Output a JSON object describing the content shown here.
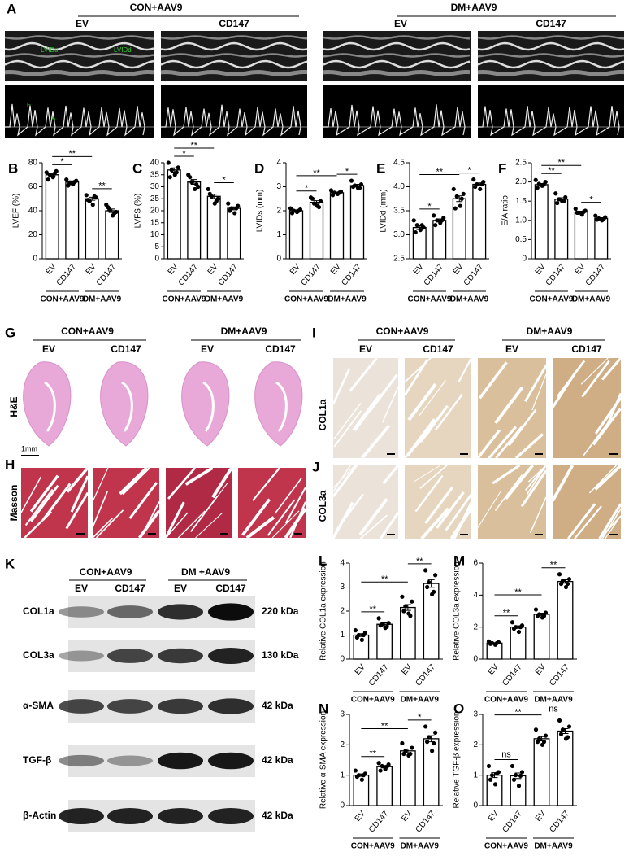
{
  "echo": {
    "panel": "A",
    "groups": [
      {
        "name": "CON+AAV9",
        "columns": [
          "EV",
          "CD147"
        ]
      },
      {
        "name": "DM+AAV9",
        "columns": [
          "EV",
          "CD147"
        ]
      }
    ],
    "annotations": [
      "LVIDs",
      "LVIDd",
      "E",
      "A"
    ]
  },
  "he_masson": {
    "panel_g": "G",
    "panel_h": "H",
    "groups": [
      {
        "name": "CON+AAV9",
        "columns": [
          "EV",
          "CD147"
        ]
      },
      {
        "name": "DM+AAV9",
        "columns": [
          "EV",
          "CD147"
        ]
      }
    ],
    "row_labels": [
      "H&E",
      "Masson"
    ],
    "scale_bar": "1mm"
  },
  "ihc": {
    "panel_i": "I",
    "panel_j": "J",
    "groups": [
      {
        "name": "CON+AAV9",
        "columns": [
          "EV",
          "CD147"
        ]
      },
      {
        "name": "DM+AAV9",
        "columns": [
          "EV",
          "CD147"
        ]
      }
    ],
    "row_labels": [
      "COL1a",
      "COL3a"
    ]
  },
  "western": {
    "panel": "K",
    "groups": [
      {
        "name": "CON+AAV9",
        "columns": [
          "EV",
          "CD147"
        ]
      },
      {
        "name": "DM +AAV9",
        "columns": [
          "EV",
          "CD147"
        ]
      }
    ],
    "rows": [
      {
        "protein": "COL1a",
        "size": "220 kDa"
      },
      {
        "protein": "COL3a",
        "size": "130 kDa"
      },
      {
        "protein": "α-SMA",
        "size": "42 kDa"
      },
      {
        "protein": "TGF-β",
        "size": "42 kDa"
      },
      {
        "protein": "β-Actin",
        "size": "42 kDa"
      }
    ]
  },
  "chart_data": [
    {
      "type": "bar",
      "panel": "B",
      "ylabel": "LVEF (%)",
      "categories": [
        "EV",
        "CD147",
        "EV",
        "CD147"
      ],
      "groups": [
        "CON+AAV9",
        "DM+AAV9"
      ],
      "values": [
        70,
        64,
        50,
        40
      ],
      "errors": [
        1.2,
        0.9,
        1.3,
        1.4
      ],
      "points": [
        [
          72,
          70,
          68,
          73,
          66,
          71
        ],
        [
          66,
          63,
          62,
          65,
          61,
          64
        ],
        [
          53,
          48,
          45,
          51,
          49,
          52
        ],
        [
          45,
          41,
          36,
          39,
          43,
          38
        ]
      ],
      "significance": [
        "*",
        "**",
        "**"
      ],
      "ylim": [
        0,
        80
      ],
      "yticks": [
        0,
        20,
        40,
        60,
        80
      ]
    },
    {
      "type": "bar",
      "panel": "C",
      "ylabel": "LVFS (%)",
      "categories": [
        "EV",
        "CD147",
        "EV",
        "CD147"
      ],
      "groups": [
        "CON+AAV9",
        "DM+AAV9"
      ],
      "values": [
        37,
        32,
        26,
        21
      ],
      "errors": [
        0.9,
        1.0,
        0.9,
        0.6
      ],
      "points": [
        [
          40,
          37,
          35,
          38,
          34,
          36
        ],
        [
          35,
          32,
          29,
          30,
          34,
          31
        ],
        [
          29,
          26,
          23,
          25,
          27,
          24
        ],
        [
          23,
          21,
          19,
          22,
          20,
          21
        ]
      ],
      "significance": [
        "*",
        "**",
        "*"
      ],
      "ylim": [
        0,
        40
      ],
      "yticks": [
        0,
        5,
        10,
        15,
        20,
        25,
        30,
        35,
        40
      ]
    },
    {
      "type": "bar",
      "panel": "D",
      "ylabel": "LVIDs (mm)",
      "categories": [
        "EV",
        "CD147",
        "EV",
        "CD147"
      ],
      "groups": [
        "CON+AAV9",
        "DM+AAV9"
      ],
      "values": [
        2.0,
        2.35,
        2.75,
        3.05
      ],
      "errors": [
        0.04,
        0.07,
        0.03,
        0.05
      ],
      "points": [
        [
          2.1,
          2.0,
          1.95,
          2.05,
          1.9,
          2.0
        ],
        [
          2.55,
          2.3,
          2.2,
          2.4,
          2.5,
          2.15
        ],
        [
          2.85,
          2.75,
          2.7,
          2.8,
          2.65,
          2.75
        ],
        [
          3.25,
          3.05,
          2.95,
          3.1,
          3.0,
          2.95
        ]
      ],
      "significance": [
        "*",
        "**",
        "*"
      ],
      "ylim": [
        0,
        4
      ],
      "yticks": [
        0,
        1,
        2,
        3,
        4
      ]
    },
    {
      "type": "bar",
      "panel": "E",
      "ylabel": "LVIDd (mm)",
      "categories": [
        "EV",
        "CD147",
        "EV",
        "CD147"
      ],
      "groups": [
        "CON+AAV9",
        "DM+AAV9"
      ],
      "values": [
        3.15,
        3.3,
        3.75,
        4.05
      ],
      "errors": [
        0.04,
        0.03,
        0.06,
        0.03
      ],
      "points": [
        [
          3.3,
          3.2,
          3.1,
          3.15,
          3.05,
          3.2
        ],
        [
          3.4,
          3.3,
          3.25,
          3.35,
          3.2,
          3.3
        ],
        [
          3.95,
          3.8,
          3.6,
          3.85,
          3.55,
          3.75
        ],
        [
          4.15,
          4.05,
          3.95,
          4.1,
          4.0,
          4.05
        ]
      ],
      "significance": [
        "*",
        "**",
        "*"
      ],
      "ylim": [
        2.5,
        4.5
      ],
      "yticks": [
        2.5,
        {
          "value": 3,
          "label": "3.0"
        },
        3.5,
        {
          "value": 4,
          "label": "4.0"
        },
        4.5
      ]
    },
    {
      "type": "bar",
      "panel": "F",
      "ylabel": "E/A ratio",
      "categories": [
        "EV",
        "CD147",
        "EV",
        "CD147"
      ],
      "groups": [
        "CON+AAV9",
        "DM+AAV9"
      ],
      "values": [
        1.93,
        1.55,
        1.22,
        1.05
      ],
      "errors": [
        0.03,
        0.04,
        0.02,
        0.02
      ],
      "points": [
        [
          2.05,
          1.95,
          1.9,
          2.0,
          1.85,
          1.93
        ],
        [
          1.7,
          1.55,
          1.5,
          1.6,
          1.45,
          1.5
        ],
        [
          1.3,
          1.2,
          1.15,
          1.25,
          1.2,
          1.22
        ],
        [
          1.12,
          1.05,
          1.0,
          1.08,
          1.02,
          1.03
        ]
      ],
      "significance": [
        "**",
        "**",
        "*"
      ],
      "ylim": [
        0,
        2.5
      ],
      "yticks": [
        0,
        0.5,
        {
          "value": 1,
          "label": "1.0"
        },
        1.5,
        {
          "value": 2,
          "label": "2.0"
        },
        2.5
      ]
    },
    {
      "type": "bar",
      "panel": "L",
      "ylabel": "Relative COL1a expression",
      "categories": [
        "EV",
        "CD147",
        "EV",
        "CD147"
      ],
      "groups": [
        "CON+AAV9",
        "DM+AAV9"
      ],
      "values": [
        1.0,
        1.45,
        2.15,
        3.15
      ],
      "errors": [
        0.06,
        0.06,
        0.12,
        0.16
      ],
      "points": [
        [
          1.2,
          1.0,
          0.8,
          1.1,
          0.9,
          1.0
        ],
        [
          1.7,
          1.45,
          1.3,
          1.5,
          1.4,
          1.35
        ],
        [
          2.6,
          2.2,
          1.9,
          2.4,
          2.0,
          1.8
        ],
        [
          3.7,
          3.2,
          2.7,
          3.5,
          3.0,
          2.8
        ]
      ],
      "significance": [
        "**",
        "**",
        "**"
      ],
      "ylim": [
        0,
        4
      ],
      "yticks": [
        0,
        1,
        2,
        3,
        4
      ]
    },
    {
      "type": "bar",
      "panel": "M",
      "ylabel": "Relative COL3a expression",
      "categories": [
        "EV",
        "CD147",
        "EV",
        "CD147"
      ],
      "groups": [
        "CON+AAV9",
        "DM+AAV9"
      ],
      "values": [
        1.0,
        2.0,
        2.8,
        4.85
      ],
      "errors": [
        0.03,
        0.08,
        0.07,
        0.11
      ],
      "points": [
        [
          1.1,
          1.0,
          0.9,
          1.05,
          0.95,
          1.0
        ],
        [
          2.3,
          2.0,
          1.7,
          2.1,
          1.9,
          2.0
        ],
        [
          3.1,
          2.8,
          2.6,
          2.9,
          2.7,
          2.7
        ],
        [
          5.3,
          4.9,
          4.5,
          5.0,
          4.7,
          4.7
        ]
      ],
      "significance": [
        "**",
        "**",
        "**"
      ],
      "ylim": [
        0,
        6
      ],
      "yticks": [
        0,
        2,
        4,
        6
      ]
    },
    {
      "type": "bar",
      "panel": "N",
      "ylabel": "Relative α-SMA expression",
      "categories": [
        "EV",
        "CD147",
        "EV",
        "CD147"
      ],
      "groups": [
        "CON+AAV9",
        "DM+AAV9"
      ],
      "values": [
        1.0,
        1.28,
        1.8,
        2.2
      ],
      "errors": [
        0.04,
        0.04,
        0.06,
        0.1
      ],
      "points": [
        [
          1.15,
          1.0,
          0.85,
          1.05,
          0.95,
          1.0
        ],
        [
          1.4,
          1.3,
          1.2,
          1.35,
          1.15,
          1.28
        ],
        [
          2.05,
          1.8,
          1.65,
          1.9,
          1.7,
          1.7
        ],
        [
          2.6,
          2.25,
          1.8,
          2.4,
          2.1,
          2.05
        ]
      ],
      "significance": [
        "**",
        "**",
        "*"
      ],
      "ylim": [
        0,
        3
      ],
      "yticks": [
        0,
        1,
        2,
        3
      ]
    },
    {
      "type": "bar",
      "panel": "O",
      "ylabel": "Relative TGF-β expression",
      "categories": [
        "EV",
        "CD147",
        "EV",
        "CD147"
      ],
      "groups": [
        "CON+AAV9",
        "DM+AAV9"
      ],
      "values": [
        1.0,
        0.98,
        2.2,
        2.45
      ],
      "errors": [
        0.08,
        0.09,
        0.07,
        0.08
      ],
      "points": [
        [
          1.3,
          1.0,
          0.7,
          1.1,
          0.85,
          1.05
        ],
        [
          1.3,
          1.0,
          0.65,
          1.1,
          0.85,
          0.98
        ],
        [
          2.5,
          2.2,
          2.0,
          2.3,
          2.1,
          2.1
        ],
        [
          2.8,
          2.5,
          2.2,
          2.6,
          2.35,
          2.25
        ]
      ],
      "significance": [
        "ns",
        "**",
        "ns"
      ],
      "ylim": [
        0,
        3
      ],
      "yticks": [
        0,
        1,
        2,
        3
      ]
    }
  ]
}
